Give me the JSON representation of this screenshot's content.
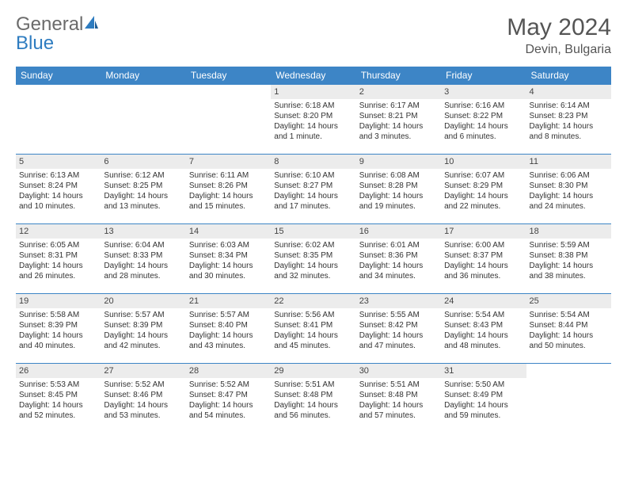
{
  "logo": {
    "general": "General",
    "blue": "Blue"
  },
  "title": "May 2024",
  "location": "Devin, Bulgaria",
  "colors": {
    "header_bg": "#3d85c6",
    "header_fg": "#ffffff",
    "daynum_bg": "#ececec",
    "border": "#3d85c6",
    "logo_blue": "#2e7cc0",
    "logo_gray": "#6b6b6b"
  },
  "weekdays": [
    "Sunday",
    "Monday",
    "Tuesday",
    "Wednesday",
    "Thursday",
    "Friday",
    "Saturday"
  ],
  "weeks": [
    [
      null,
      null,
      null,
      {
        "n": "1",
        "sr": "6:18 AM",
        "ss": "8:20 PM",
        "dl": "14 hours and 1 minute."
      },
      {
        "n": "2",
        "sr": "6:17 AM",
        "ss": "8:21 PM",
        "dl": "14 hours and 3 minutes."
      },
      {
        "n": "3",
        "sr": "6:16 AM",
        "ss": "8:22 PM",
        "dl": "14 hours and 6 minutes."
      },
      {
        "n": "4",
        "sr": "6:14 AM",
        "ss": "8:23 PM",
        "dl": "14 hours and 8 minutes."
      }
    ],
    [
      {
        "n": "5",
        "sr": "6:13 AM",
        "ss": "8:24 PM",
        "dl": "14 hours and 10 minutes."
      },
      {
        "n": "6",
        "sr": "6:12 AM",
        "ss": "8:25 PM",
        "dl": "14 hours and 13 minutes."
      },
      {
        "n": "7",
        "sr": "6:11 AM",
        "ss": "8:26 PM",
        "dl": "14 hours and 15 minutes."
      },
      {
        "n": "8",
        "sr": "6:10 AM",
        "ss": "8:27 PM",
        "dl": "14 hours and 17 minutes."
      },
      {
        "n": "9",
        "sr": "6:08 AM",
        "ss": "8:28 PM",
        "dl": "14 hours and 19 minutes."
      },
      {
        "n": "10",
        "sr": "6:07 AM",
        "ss": "8:29 PM",
        "dl": "14 hours and 22 minutes."
      },
      {
        "n": "11",
        "sr": "6:06 AM",
        "ss": "8:30 PM",
        "dl": "14 hours and 24 minutes."
      }
    ],
    [
      {
        "n": "12",
        "sr": "6:05 AM",
        "ss": "8:31 PM",
        "dl": "14 hours and 26 minutes."
      },
      {
        "n": "13",
        "sr": "6:04 AM",
        "ss": "8:33 PM",
        "dl": "14 hours and 28 minutes."
      },
      {
        "n": "14",
        "sr": "6:03 AM",
        "ss": "8:34 PM",
        "dl": "14 hours and 30 minutes."
      },
      {
        "n": "15",
        "sr": "6:02 AM",
        "ss": "8:35 PM",
        "dl": "14 hours and 32 minutes."
      },
      {
        "n": "16",
        "sr": "6:01 AM",
        "ss": "8:36 PM",
        "dl": "14 hours and 34 minutes."
      },
      {
        "n": "17",
        "sr": "6:00 AM",
        "ss": "8:37 PM",
        "dl": "14 hours and 36 minutes."
      },
      {
        "n": "18",
        "sr": "5:59 AM",
        "ss": "8:38 PM",
        "dl": "14 hours and 38 minutes."
      }
    ],
    [
      {
        "n": "19",
        "sr": "5:58 AM",
        "ss": "8:39 PM",
        "dl": "14 hours and 40 minutes."
      },
      {
        "n": "20",
        "sr": "5:57 AM",
        "ss": "8:39 PM",
        "dl": "14 hours and 42 minutes."
      },
      {
        "n": "21",
        "sr": "5:57 AM",
        "ss": "8:40 PM",
        "dl": "14 hours and 43 minutes."
      },
      {
        "n": "22",
        "sr": "5:56 AM",
        "ss": "8:41 PM",
        "dl": "14 hours and 45 minutes."
      },
      {
        "n": "23",
        "sr": "5:55 AM",
        "ss": "8:42 PM",
        "dl": "14 hours and 47 minutes."
      },
      {
        "n": "24",
        "sr": "5:54 AM",
        "ss": "8:43 PM",
        "dl": "14 hours and 48 minutes."
      },
      {
        "n": "25",
        "sr": "5:54 AM",
        "ss": "8:44 PM",
        "dl": "14 hours and 50 minutes."
      }
    ],
    [
      {
        "n": "26",
        "sr": "5:53 AM",
        "ss": "8:45 PM",
        "dl": "14 hours and 52 minutes."
      },
      {
        "n": "27",
        "sr": "5:52 AM",
        "ss": "8:46 PM",
        "dl": "14 hours and 53 minutes."
      },
      {
        "n": "28",
        "sr": "5:52 AM",
        "ss": "8:47 PM",
        "dl": "14 hours and 54 minutes."
      },
      {
        "n": "29",
        "sr": "5:51 AM",
        "ss": "8:48 PM",
        "dl": "14 hours and 56 minutes."
      },
      {
        "n": "30",
        "sr": "5:51 AM",
        "ss": "8:48 PM",
        "dl": "14 hours and 57 minutes."
      },
      {
        "n": "31",
        "sr": "5:50 AM",
        "ss": "8:49 PM",
        "dl": "14 hours and 59 minutes."
      },
      null
    ]
  ],
  "labels": {
    "sunrise": "Sunrise:",
    "sunset": "Sunset:",
    "daylight": "Daylight:"
  }
}
